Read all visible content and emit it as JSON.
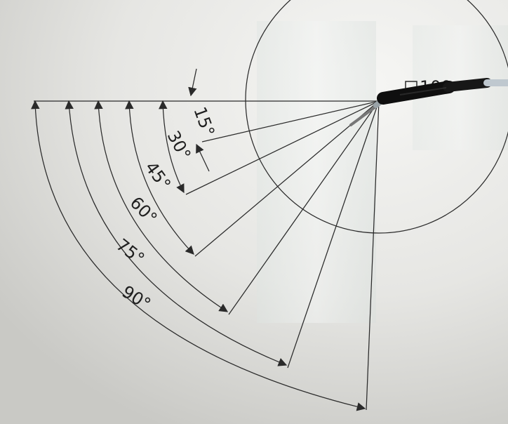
{
  "image": {
    "type": "photo-of-printed-angle-template",
    "colors": {
      "paper_light": "#f1f1ef",
      "paper_dark": "#cfcfcb",
      "ink": "#2a2a2a",
      "tape": "#e7ebe8",
      "cable": "#111111",
      "cable_sleeve": "#bfc8cf"
    }
  },
  "angles": {
    "labels": [
      "15°",
      "30°",
      "45°",
      "60°",
      "75°",
      "90°"
    ]
  },
  "template": {
    "partial_number": "100"
  }
}
